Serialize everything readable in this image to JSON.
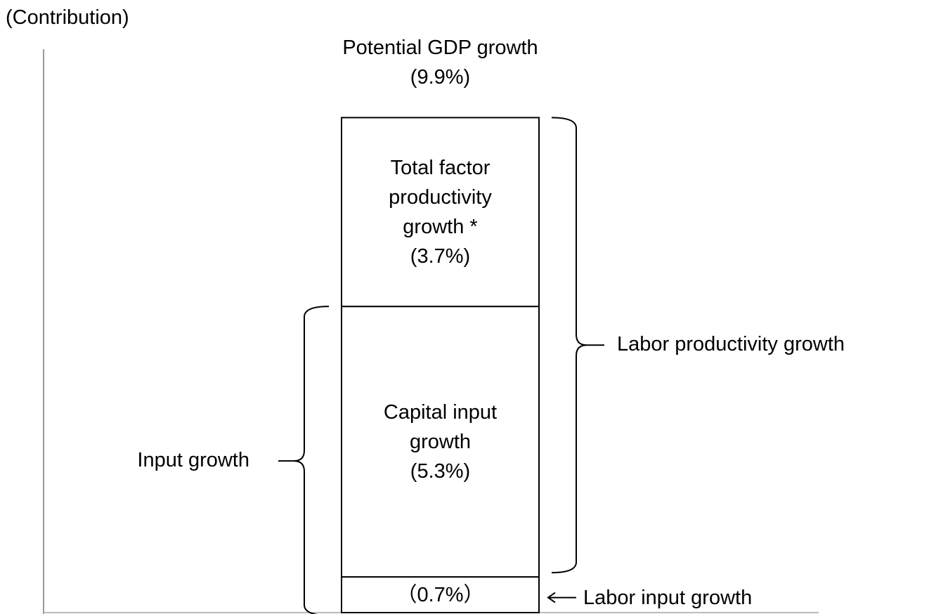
{
  "chart_data": {
    "type": "bar",
    "ylabel": "(Contribution)",
    "ylim": [
      0,
      11
    ],
    "color": "#ffffff",
    "series": [
      {
        "name": "Labor input growth",
        "values": [
          0.7
        ],
        "value_labels": [
          "（0.7%）"
        ]
      },
      {
        "name": "Capital input growth",
        "values": [
          5.3
        ],
        "value_labels": [
          "(5.3%)"
        ]
      },
      {
        "name": "Total factor productivity growth *",
        "values": [
          3.7
        ],
        "value_labels": [
          "(3.7%)"
        ]
      }
    ],
    "total": {
      "label": "Potential GDP growth",
      "value": 9.9,
      "value_label": "(9.9%)"
    },
    "brackets": [
      {
        "label": "Labor productivity growth",
        "series": [
          1,
          2
        ]
      },
      {
        "label": "Input growth",
        "series": [
          0,
          1
        ]
      }
    ]
  }
}
